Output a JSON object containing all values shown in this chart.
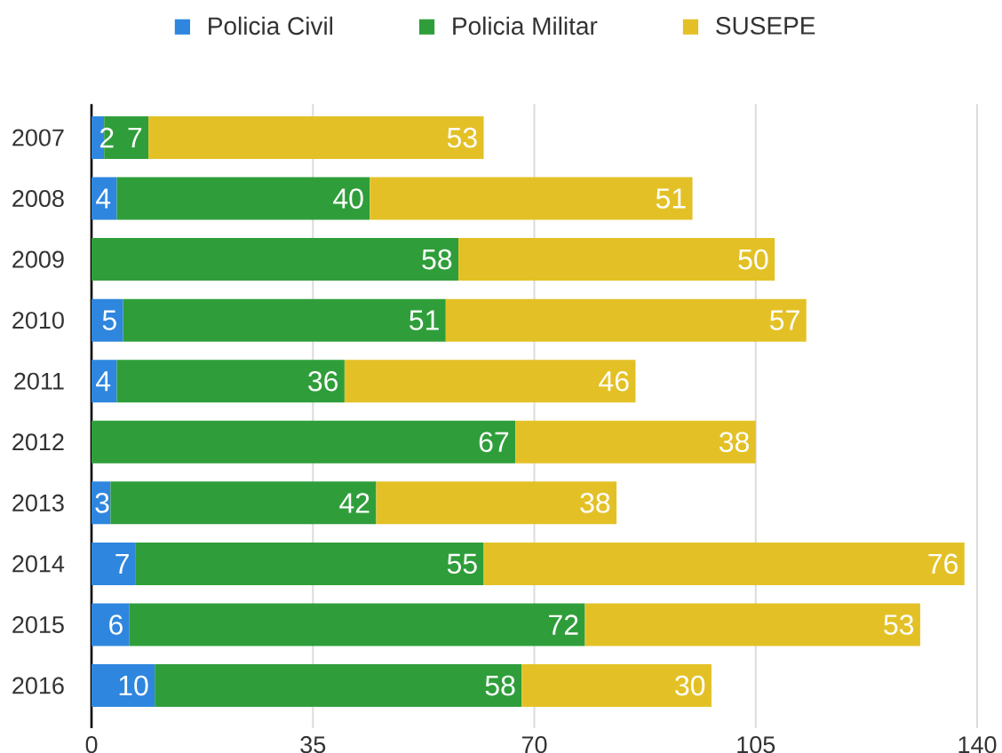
{
  "chart_data": {
    "type": "bar",
    "orientation": "horizontal",
    "stacked": true,
    "categories": [
      "2007",
      "2008",
      "2009",
      "2010",
      "2011",
      "2012",
      "2013",
      "2014",
      "2015",
      "2016"
    ],
    "series": [
      {
        "name": "Policia Civil",
        "color": "#2e86de",
        "values": [
          2,
          4,
          null,
          5,
          4,
          null,
          3,
          7,
          6,
          10
        ]
      },
      {
        "name": "Policia Militar",
        "color": "#2f9e3a",
        "values": [
          7,
          40,
          58,
          51,
          36,
          67,
          42,
          55,
          72,
          58
        ]
      },
      {
        "name": "SUSEPE",
        "color": "#e3c126",
        "values": [
          53,
          51,
          50,
          57,
          46,
          38,
          38,
          76,
          53,
          30
        ]
      }
    ],
    "xlim": [
      0,
      140
    ],
    "xticks": [
      0,
      35,
      70,
      105,
      140
    ],
    "grid": "x",
    "legend": "top",
    "data_labels": true
  }
}
